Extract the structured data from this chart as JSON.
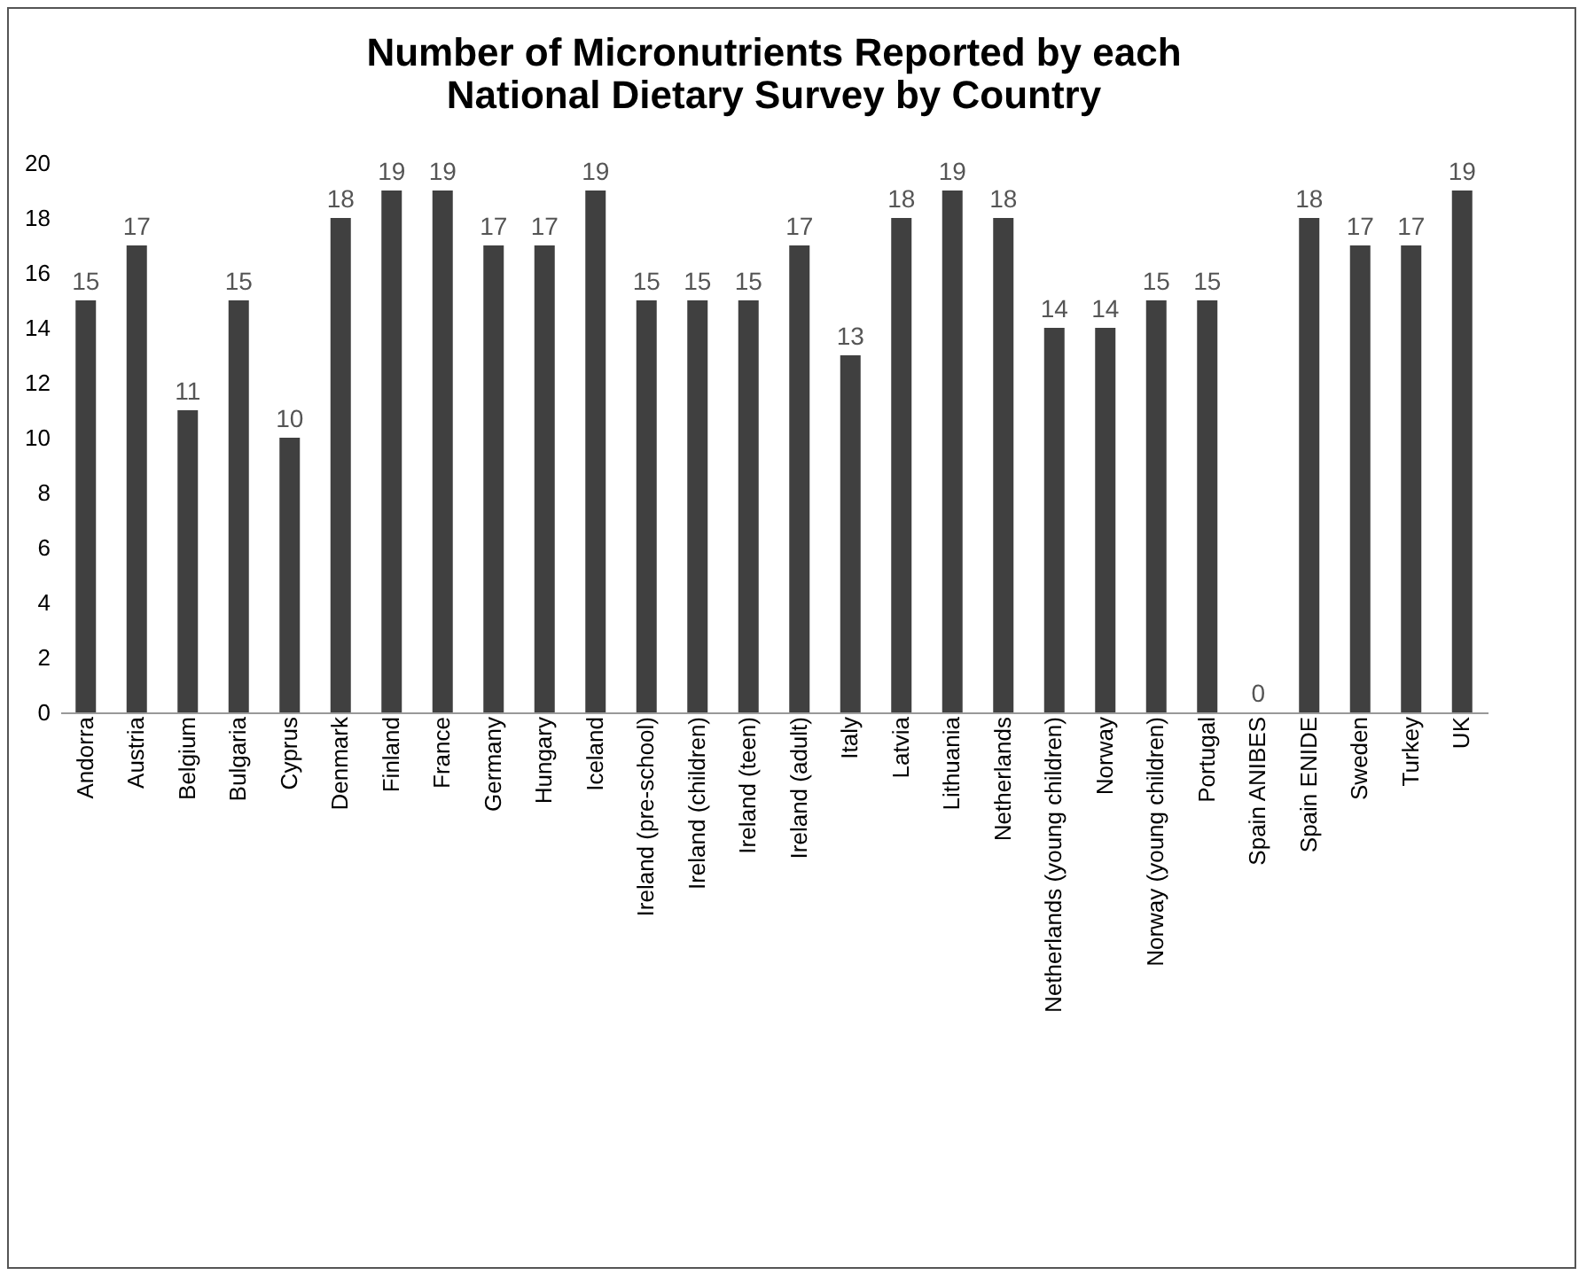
{
  "chart_data": {
    "type": "bar",
    "title": "Number of Micronutrients Reported by each National Dietary Survey by Country",
    "categories": [
      "Andorra",
      "Austria",
      "Belgium",
      "Bulgaria",
      "Cyprus",
      "Denmark",
      "Finland",
      "France",
      "Germany",
      "Hungary",
      "Iceland",
      "Ireland (pre-school)",
      "Ireland (children)",
      "Ireland (teen)",
      "Ireland (adult)",
      "Italy",
      "Latvia",
      "Lithuania",
      "Netherlands",
      "Netherlands (young children)",
      "Norway",
      "Norway (young children)",
      "Portugal",
      "Spain ANIBES",
      "Spain ENIDE",
      "Sweden",
      "Turkey",
      "UK"
    ],
    "values": [
      15,
      17,
      11,
      15,
      10,
      18,
      19,
      19,
      17,
      17,
      19,
      15,
      15,
      15,
      17,
      13,
      18,
      19,
      18,
      14,
      14,
      15,
      15,
      0,
      18,
      17,
      17,
      19
    ],
    "color": "#404040",
    "ylim": [
      0,
      20
    ],
    "yticks": [
      0,
      2,
      4,
      6,
      8,
      10,
      12,
      14,
      16,
      18,
      20
    ],
    "data_labels": true,
    "grid": false
  }
}
